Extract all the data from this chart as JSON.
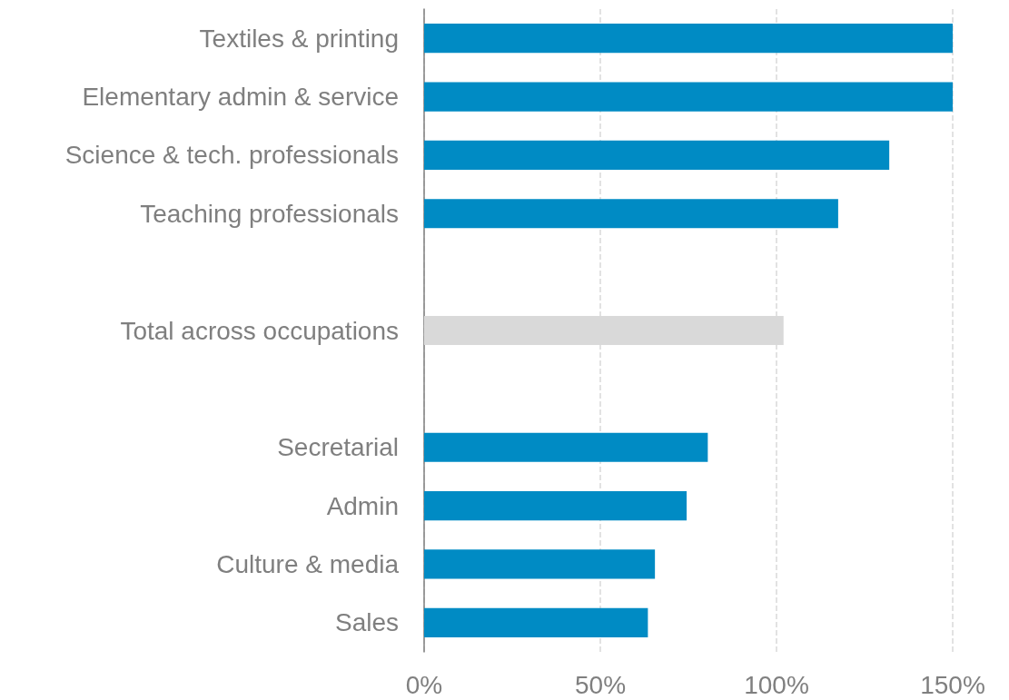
{
  "chart_data": {
    "type": "bar",
    "orientation": "horizontal",
    "categories": [
      "Textiles & printing",
      "Elementary admin & service",
      "Science & tech. professionals",
      "Teaching professionals",
      null,
      "Total across occupations",
      null,
      "Secretarial",
      "Admin",
      "Culture & media",
      "Sales"
    ],
    "values": [
      150,
      150,
      132,
      117.5,
      null,
      102,
      null,
      80.5,
      74.5,
      65.5,
      63.5
    ],
    "colors": [
      "#008bc4",
      "#008bc4",
      "#008bc4",
      "#008bc4",
      null,
      "#d9d9d9",
      null,
      "#008bc4",
      "#008bc4",
      "#008bc4",
      "#008bc4"
    ],
    "xlim": [
      0,
      150
    ],
    "xticks": [
      {
        "value": 0,
        "label": "0%"
      },
      {
        "value": 50,
        "label": "50%"
      },
      {
        "value": 100,
        "label": "100%"
      },
      {
        "value": 150,
        "label": "150%"
      }
    ],
    "grid": "x"
  }
}
